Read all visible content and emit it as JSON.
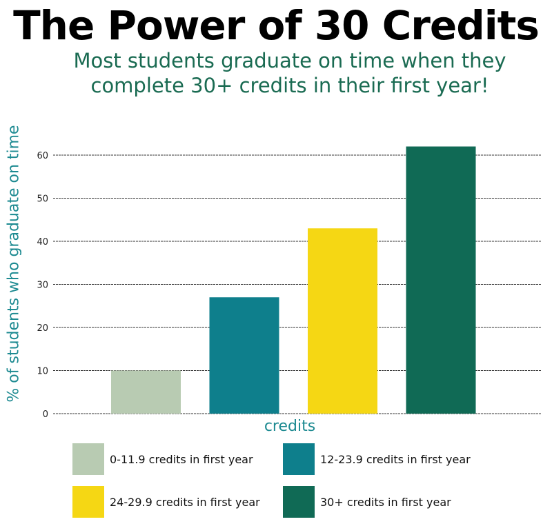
{
  "chart_data": {
    "type": "bar",
    "title": "The Power of 30 Credits",
    "subtitle_lines": [
      "Most students graduate on time when they",
      "complete 30+ credits in their first year!"
    ],
    "xlabel": "credits",
    "ylabel": "% of students who graduate on time",
    "ylim": [
      0,
      60
    ],
    "yticks": [
      0,
      10,
      20,
      30,
      40,
      50,
      60
    ],
    "grid": true,
    "categories": [
      "0-11.9 credits in first year",
      "12-23.9 credits in first year",
      "24-29.9 credits in first year",
      "30+ credits in first year"
    ],
    "values": [
      10,
      27,
      43,
      62
    ],
    "colors": [
      "#b8cbb2",
      "#0e7f8c",
      "#f5d714",
      "#106a55"
    ],
    "legend_position": "bottom"
  }
}
